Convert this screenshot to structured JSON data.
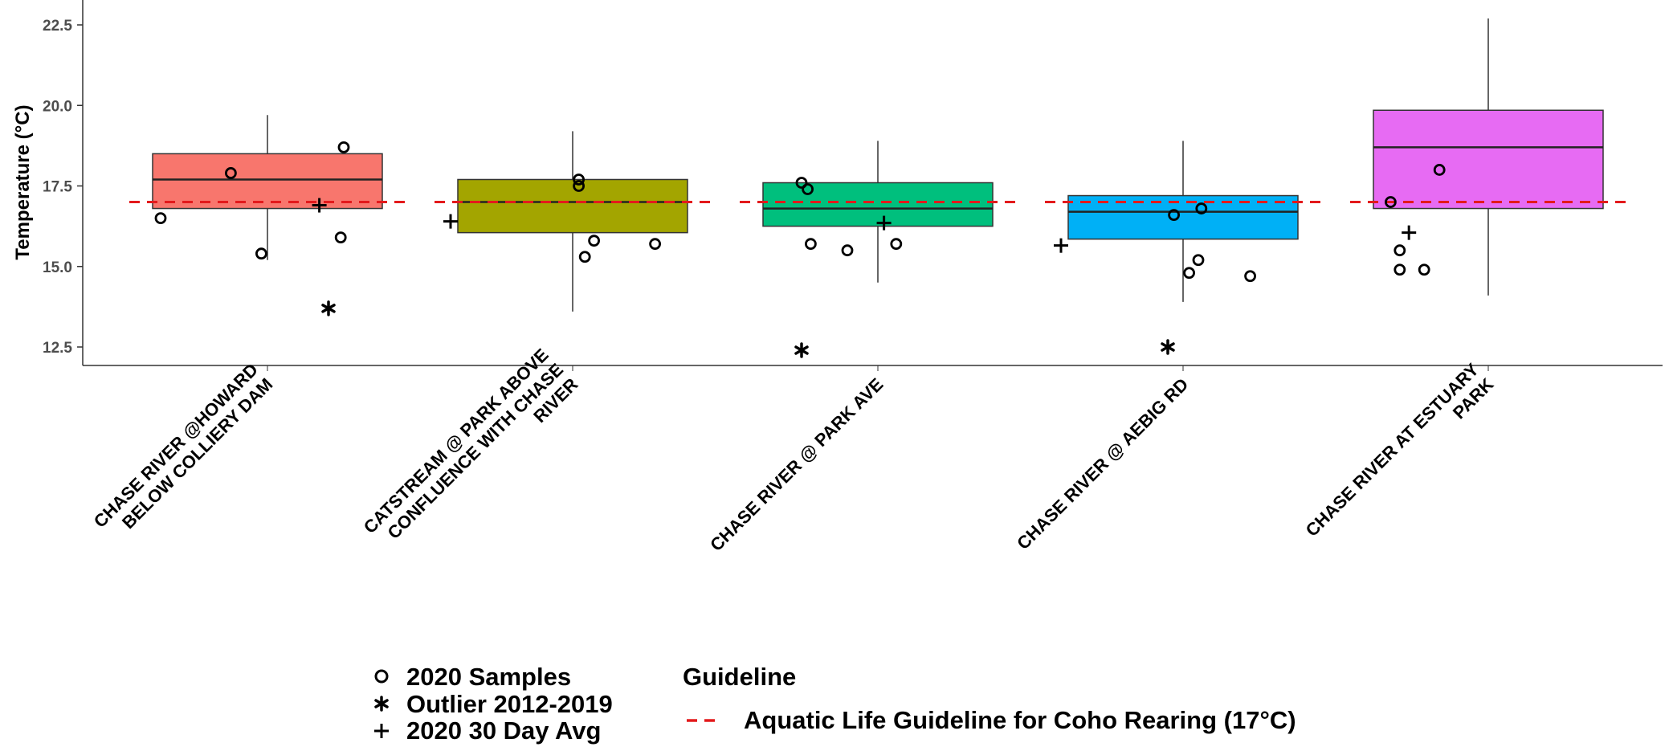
{
  "chart_data": {
    "type": "box",
    "ylabel": "Temperature (°C)",
    "ylim": [
      11.8,
      23.3
    ],
    "yticks": [
      "12.5",
      "15.0",
      "17.5",
      "20.0",
      "22.5"
    ],
    "ytick_values": [
      12.5,
      15.0,
      17.5,
      20.0,
      22.5
    ],
    "grid": false,
    "categories": [
      [
        "CHASE RIVER @HOWARD",
        "BELOW COLLIERY DAM"
      ],
      [
        "CATSTREAM @ PARK ABOVE",
        "CONFLUENCE WITH CHASE",
        "RIVER"
      ],
      [
        "CHASE RIVER @ PARK AVE"
      ],
      [
        "CHASE RIVER @ AEBIG RD"
      ],
      [
        "CHASE RIVER AT ESTUARY",
        "PARK"
      ]
    ],
    "boxes": [
      {
        "color": "#f8766d",
        "q1": 16.8,
        "median": 17.7,
        "q3": 18.5,
        "whisker_low": 15.2,
        "whisker_high": 19.7
      },
      {
        "color": "#a3a500",
        "q1": 16.05,
        "median": 17.0,
        "q3": 17.7,
        "whisker_low": 13.6,
        "whisker_high": 19.2
      },
      {
        "color": "#00bf7d",
        "q1": 16.25,
        "median": 16.8,
        "q3": 17.6,
        "whisker_low": 14.5,
        "whisker_high": 18.9
      },
      {
        "color": "#00b0f6",
        "q1": 15.85,
        "median": 16.7,
        "q3": 17.2,
        "whisker_low": 13.9,
        "whisker_high": 18.9
      },
      {
        "color": "#e76bf3",
        "q1": 16.8,
        "median": 18.7,
        "q3": 19.85,
        "whisker_low": 14.1,
        "whisker_high": 22.7
      }
    ],
    "samples_2020": [
      [
        [
          -0.35,
          16.5
        ],
        [
          -0.12,
          17.9
        ],
        [
          -0.02,
          15.4
        ],
        [
          0.24,
          15.9
        ],
        [
          0.25,
          18.7
        ]
      ],
      [
        [
          0.02,
          17.7
        ],
        [
          0.02,
          17.5
        ],
        [
          0.04,
          15.3
        ],
        [
          0.07,
          15.8
        ],
        [
          0.27,
          15.7
        ]
      ],
      [
        [
          -0.25,
          17.6
        ],
        [
          -0.23,
          17.4
        ],
        [
          -0.22,
          15.7
        ],
        [
          -0.1,
          15.5
        ],
        [
          0.06,
          15.7
        ]
      ],
      [
        [
          -0.03,
          16.6
        ],
        [
          0.06,
          16.8
        ],
        [
          0.02,
          14.8
        ],
        [
          0.05,
          15.2
        ],
        [
          0.22,
          14.7
        ]
      ],
      [
        [
          -0.32,
          17.0
        ],
        [
          -0.16,
          18.0
        ],
        [
          -0.29,
          15.5
        ],
        [
          -0.29,
          14.9
        ],
        [
          -0.21,
          14.9
        ]
      ]
    ],
    "outliers_2012_2019": [
      [
        [
          0.2,
          13.7
        ]
      ],
      [],
      [
        [
          -0.25,
          12.4
        ]
      ],
      [
        [
          -0.05,
          12.5
        ]
      ],
      []
    ],
    "avg_30day_2020": [
      [
        0.17,
        16.9
      ],
      [
        -0.4,
        16.4
      ],
      [
        0.02,
        16.35
      ],
      [
        -0.4,
        15.65
      ],
      [
        -0.26,
        16.05
      ]
    ],
    "guideline": {
      "y": 17.0,
      "color": "#e31a1c",
      "name": "Aquatic Life Guideline for Coho Rearing (17°C)"
    },
    "legend": {
      "placement": "bottom",
      "shapes": [
        "2020 Samples",
        "Outlier 2012-2019",
        "2020 30 Day Avg"
      ],
      "guideline_title": "Guideline",
      "guideline_label": "Aquatic Life Guideline for Coho Rearing (17°C)"
    }
  }
}
